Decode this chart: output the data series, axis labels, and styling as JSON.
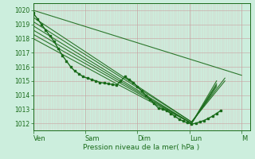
{
  "xlabel": "Pression niveau de la mer( hPa )",
  "bg_color": "#cceedd",
  "line_color": "#1a6b1a",
  "ylim": [
    1011.5,
    1020.5
  ],
  "yticks": [
    1012,
    1013,
    1014,
    1015,
    1016,
    1017,
    1018,
    1019,
    1020
  ],
  "days": [
    "Ven",
    "Sam",
    "Dim",
    "Lun",
    "M"
  ],
  "day_positions": [
    0,
    0.25,
    0.5,
    0.75,
    1.0
  ],
  "xlim": [
    0,
    1.04
  ],
  "forecast_lines": [
    {
      "x": [
        0.0,
        1.0
      ],
      "y": [
        1020.0,
        1015.4
      ]
    },
    {
      "x": [
        0.0,
        0.76,
        0.92
      ],
      "y": [
        1019.5,
        1012.1,
        1015.2
      ]
    },
    {
      "x": [
        0.0,
        0.76,
        0.92
      ],
      "y": [
        1019.2,
        1012.1,
        1015.0
      ]
    },
    {
      "x": [
        0.0,
        0.76,
        0.88
      ],
      "y": [
        1018.9,
        1012.0,
        1014.8
      ]
    },
    {
      "x": [
        0.0,
        0.76,
        0.88
      ],
      "y": [
        1018.6,
        1012.0,
        1014.7
      ]
    },
    {
      "x": [
        0.0,
        0.76,
        0.88
      ],
      "y": [
        1018.3,
        1012.0,
        1014.6
      ]
    },
    {
      "x": [
        0.0,
        0.4,
        0.76,
        0.88
      ],
      "y": [
        1018.0,
        1014.8,
        1012.0,
        1015.0
      ]
    }
  ],
  "main_line_x": [
    0.0,
    0.02,
    0.04,
    0.06,
    0.08,
    0.1,
    0.12,
    0.14,
    0.16,
    0.18,
    0.2,
    0.22,
    0.24,
    0.26,
    0.28,
    0.3,
    0.32,
    0.34,
    0.36,
    0.38,
    0.4,
    0.42,
    0.44,
    0.46,
    0.48,
    0.5,
    0.52,
    0.54,
    0.56,
    0.58,
    0.6,
    0.62,
    0.64,
    0.66,
    0.68,
    0.7,
    0.72,
    0.74,
    0.76,
    0.78,
    0.8,
    0.82,
    0.84,
    0.86,
    0.88,
    0.9
  ],
  "main_line_y": [
    1019.8,
    1019.4,
    1019.0,
    1018.6,
    1018.2,
    1017.8,
    1017.3,
    1016.8,
    1016.4,
    1016.0,
    1015.7,
    1015.5,
    1015.3,
    1015.2,
    1015.1,
    1015.0,
    1014.9,
    1014.85,
    1014.8,
    1014.75,
    1014.7,
    1015.0,
    1015.3,
    1015.1,
    1014.9,
    1014.6,
    1014.3,
    1014.0,
    1013.7,
    1013.4,
    1013.1,
    1013.0,
    1012.9,
    1012.7,
    1012.5,
    1012.3,
    1012.15,
    1012.05,
    1011.95,
    1012.0,
    1012.1,
    1012.2,
    1012.35,
    1012.5,
    1012.7,
    1012.9
  ]
}
